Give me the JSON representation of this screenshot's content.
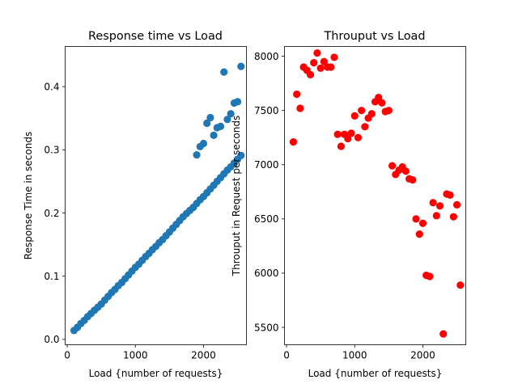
{
  "figure": {
    "background": "#ffffff"
  },
  "chart_data": [
    {
      "type": "scatter",
      "title": "Response time vs Load",
      "xlabel": "Load {number of requests}",
      "ylabel": "Response Time in seconds",
      "color": "#1f77b4",
      "xlim": [
        -30,
        2630
      ],
      "ylim": [
        -0.0085,
        0.4635
      ],
      "xticks": [
        0,
        1000,
        2000
      ],
      "xtick_labels": [
        "0",
        "1000",
        "2000"
      ],
      "yticks": [
        0.0,
        0.1,
        0.2,
        0.3,
        0.4
      ],
      "ytick_labels": [
        "0.0",
        "0.1",
        "0.2",
        "0.3",
        "0.4"
      ],
      "grid": false,
      "legend": "none",
      "series": [
        {
          "points": [
            [
              100,
              0.014
            ],
            [
              150,
              0.019
            ],
            [
              200,
              0.025
            ],
            [
              250,
              0.03
            ],
            [
              300,
              0.036
            ],
            [
              350,
              0.041
            ],
            [
              400,
              0.046
            ],
            [
              450,
              0.051
            ],
            [
              500,
              0.056
            ],
            [
              550,
              0.062
            ],
            [
              600,
              0.068
            ],
            [
              650,
              0.074
            ],
            [
              700,
              0.079
            ],
            [
              750,
              0.085
            ],
            [
              800,
              0.09
            ],
            [
              850,
              0.096
            ],
            [
              900,
              0.102
            ],
            [
              950,
              0.108
            ],
            [
              1000,
              0.114
            ],
            [
              1050,
              0.119
            ],
            [
              1100,
              0.125
            ],
            [
              1150,
              0.131
            ],
            [
              1200,
              0.136
            ],
            [
              1250,
              0.142
            ],
            [
              1300,
              0.147
            ],
            [
              1350,
              0.153
            ],
            [
              1400,
              0.158
            ],
            [
              1450,
              0.164
            ],
            [
              1500,
              0.17
            ],
            [
              1550,
              0.176
            ],
            [
              1600,
              0.182
            ],
            [
              1650,
              0.188
            ],
            [
              1700,
              0.194
            ],
            [
              1750,
              0.199
            ],
            [
              1800,
              0.204
            ],
            [
              1850,
              0.209
            ],
            [
              1900,
              0.215
            ],
            [
              1950,
              0.221
            ],
            [
              2000,
              0.226
            ],
            [
              2050,
              0.232
            ],
            [
              2100,
              0.238
            ],
            [
              2150,
              0.244
            ],
            [
              2200,
              0.25
            ],
            [
              2250,
              0.256
            ],
            [
              2300,
              0.262
            ],
            [
              2350,
              0.268
            ],
            [
              2400,
              0.273
            ],
            [
              2450,
              0.279
            ],
            [
              2500,
              0.285
            ],
            [
              2550,
              0.291
            ],
            [
              1900,
              0.292
            ],
            [
              1950,
              0.305
            ],
            [
              2000,
              0.31
            ],
            [
              2050,
              0.342
            ],
            [
              2100,
              0.351
            ],
            [
              2150,
              0.323
            ],
            [
              2200,
              0.335
            ],
            [
              2250,
              0.337
            ],
            [
              2300,
              0.423
            ],
            [
              2350,
              0.348
            ],
            [
              2400,
              0.357
            ],
            [
              2450,
              0.374
            ],
            [
              2500,
              0.376
            ],
            [
              2550,
              0.432
            ]
          ]
        }
      ]
    },
    {
      "type": "scatter",
      "title": "Throuput vs Load",
      "xlabel": "Load {number of requests}",
      "ylabel": "Throuput in Request per seconds",
      "color": "#ff0000",
      "xlim": [
        -30,
        2630
      ],
      "ylim": [
        5340,
        8090
      ],
      "xticks": [
        0,
        1000,
        2000
      ],
      "xtick_labels": [
        "0",
        "1000",
        "2000"
      ],
      "yticks": [
        5500,
        6000,
        6500,
        7000,
        7500,
        8000
      ],
      "ytick_labels": [
        "5500",
        "6000",
        "6500",
        "7000",
        "7500",
        "8000"
      ],
      "grid": false,
      "legend": "none",
      "series": [
        {
          "points": [
            [
              100,
              7210
            ],
            [
              150,
              7650
            ],
            [
              200,
              7520
            ],
            [
              250,
              7900
            ],
            [
              300,
              7870
            ],
            [
              350,
              7830
            ],
            [
              400,
              7940
            ],
            [
              450,
              8030
            ],
            [
              500,
              7890
            ],
            [
              550,
              7950
            ],
            [
              600,
              7900
            ],
            [
              650,
              7900
            ],
            [
              700,
              7990
            ],
            [
              750,
              7280
            ],
            [
              800,
              7170
            ],
            [
              850,
              7280
            ],
            [
              900,
              7240
            ],
            [
              950,
              7290
            ],
            [
              1000,
              7450
            ],
            [
              1050,
              7250
            ],
            [
              1100,
              7500
            ],
            [
              1150,
              7350
            ],
            [
              1200,
              7430
            ],
            [
              1250,
              7470
            ],
            [
              1300,
              7580
            ],
            [
              1350,
              7620
            ],
            [
              1400,
              7570
            ],
            [
              1450,
              7490
            ],
            [
              1500,
              7500
            ],
            [
              1550,
              6990
            ],
            [
              1600,
              6910
            ],
            [
              1650,
              6950
            ],
            [
              1700,
              6980
            ],
            [
              1750,
              6940
            ],
            [
              1800,
              6870
            ],
            [
              1850,
              6860
            ],
            [
              1900,
              6500
            ],
            [
              1950,
              6360
            ],
            [
              2000,
              6460
            ],
            [
              2050,
              5980
            ],
            [
              2100,
              5970
            ],
            [
              2150,
              6650
            ],
            [
              2200,
              6530
            ],
            [
              2250,
              6620
            ],
            [
              2300,
              5440
            ],
            [
              2350,
              6730
            ],
            [
              2400,
              6720
            ],
            [
              2450,
              6520
            ],
            [
              2500,
              6630
            ],
            [
              2550,
              5890
            ]
          ]
        }
      ]
    }
  ]
}
